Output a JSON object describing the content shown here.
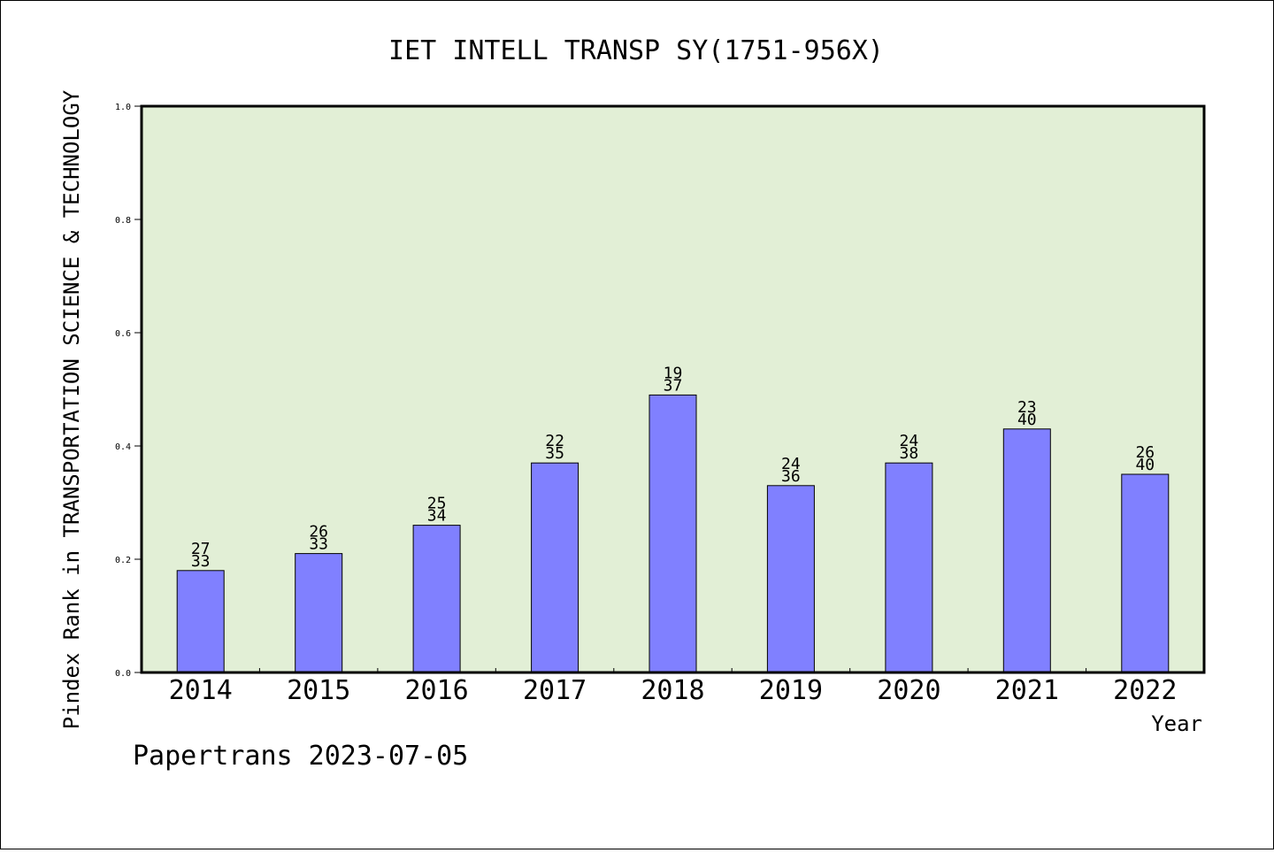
{
  "chart_data": {
    "type": "bar",
    "title": "IET INTELL TRANSP SY(1751-956X)",
    "xlabel": "Year",
    "ylabel": "Pindex Rank in TRANSPORTATION SCIENCE & TECHNOLOGY",
    "ylim": [
      0,
      1.0
    ],
    "yticks": [
      "0.0",
      "0.2",
      "0.4",
      "0.6",
      "0.8",
      "1.0"
    ],
    "categories": [
      "2014",
      "2015",
      "2016",
      "2017",
      "2018",
      "2019",
      "2020",
      "2021",
      "2022"
    ],
    "values": [
      0.18,
      0.21,
      0.26,
      0.37,
      0.49,
      0.33,
      0.37,
      0.43,
      0.35
    ],
    "rank_labels": [
      "27",
      "26",
      "25",
      "22",
      "19",
      "24",
      "24",
      "23",
      "26"
    ],
    "total_labels": [
      "33",
      "33",
      "34",
      "35",
      "37",
      "36",
      "38",
      "40",
      "40"
    ],
    "grid": false,
    "colors": {
      "plot_background": "#e2efd6",
      "bar_fill": "#8080ff",
      "bar_stroke": "#000000"
    }
  },
  "footer": "Papertrans 2023-07-05"
}
